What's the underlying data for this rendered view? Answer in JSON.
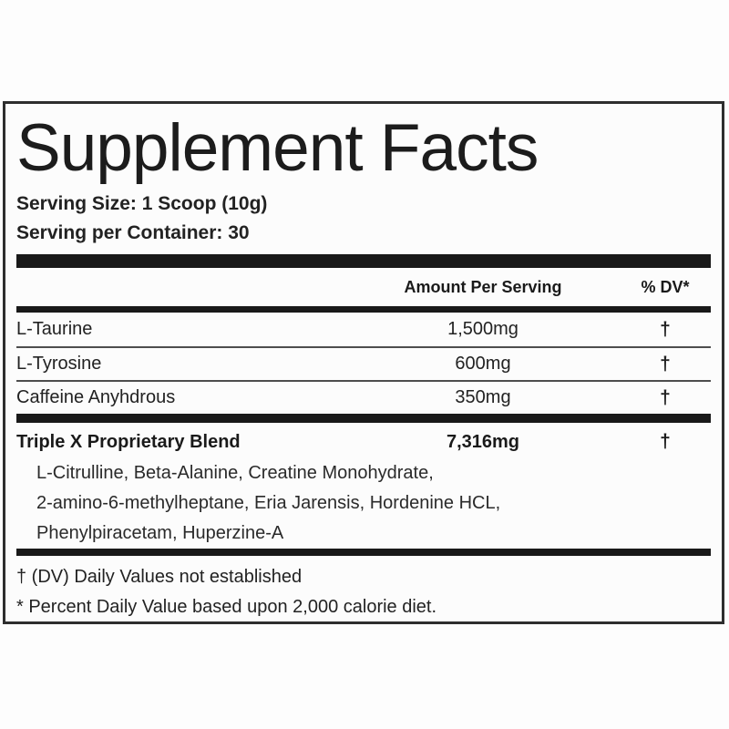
{
  "label": {
    "title": "Supplement Facts",
    "serving_size": "Serving Size: 1 Scoop (10g)",
    "servings_per_container": "Serving per Container: 30",
    "columns": {
      "amount": "Amount Per Serving",
      "dv": "% DV*"
    },
    "rows": [
      {
        "name": "L-Taurine",
        "amount": "1,500mg",
        "dv": "†"
      },
      {
        "name": "L-Tyrosine",
        "amount": "600mg",
        "dv": "†"
      },
      {
        "name": "Caffeine Anyhdrous",
        "amount": "350mg",
        "dv": "†"
      }
    ],
    "blend": {
      "name": "Triple X Proprietary Blend",
      "amount": "7,316mg",
      "dv": "†",
      "ingredients_lines": [
        "L-Citrulline, Beta-Alanine, Creatine Monohydrate,",
        "2-amino-6-methylheptane, Eria Jarensis, Hordenine HCL,",
        "Phenylpiracetam, Huperzine-A"
      ]
    },
    "footnotes": [
      "† (DV) Daily Values not established",
      "* Percent Daily Value based upon 2,000 calorie diet."
    ]
  },
  "colors": {
    "text": "#1d1d1d",
    "bar": "#191919",
    "border": "#2e2e2e",
    "label_background": "#fcfcfc",
    "page_background": "#fdfdfd",
    "thin_rule": "#4d4d4d"
  }
}
